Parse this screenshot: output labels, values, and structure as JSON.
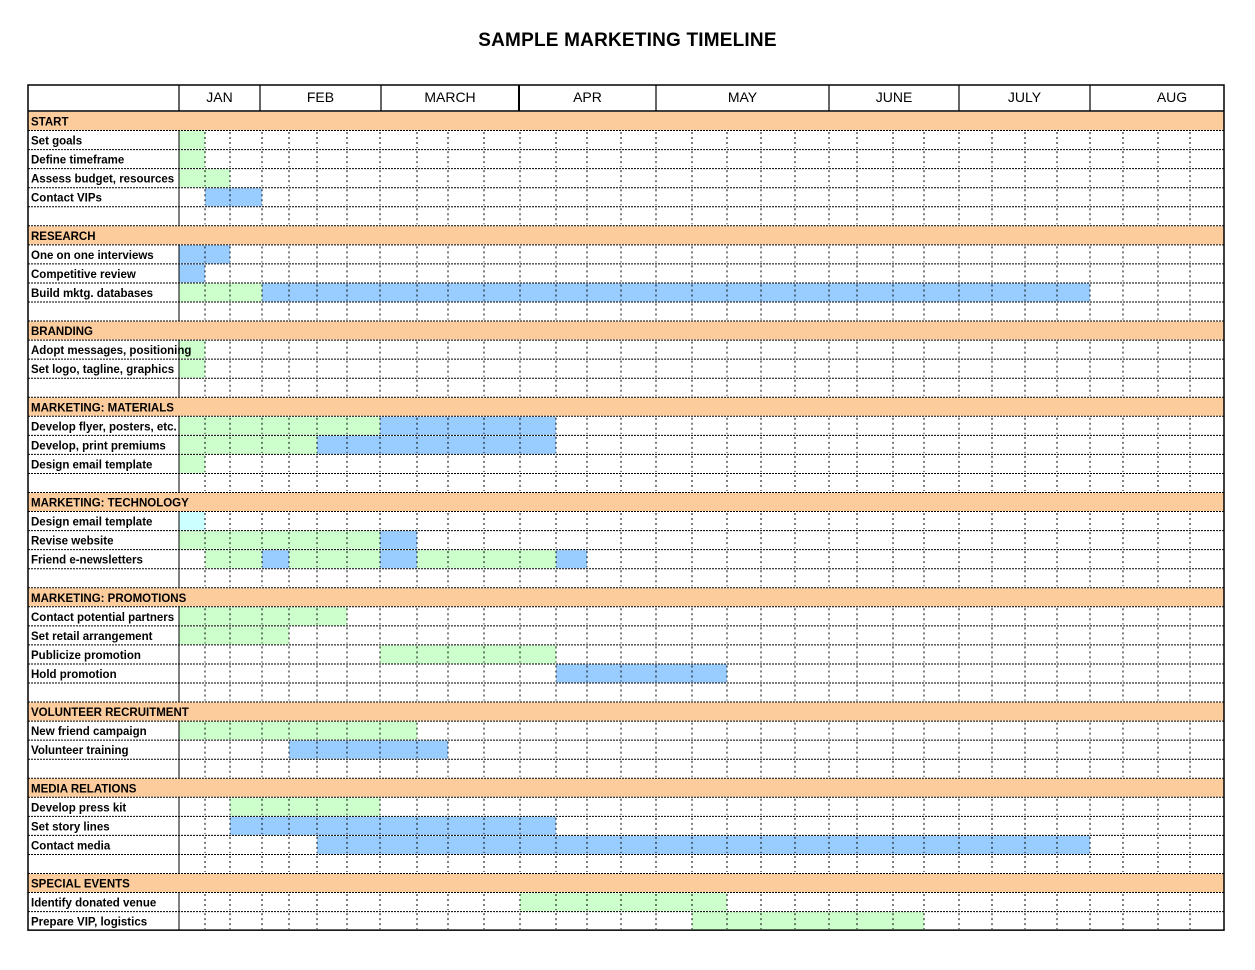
{
  "title": "SAMPLE MARKETING TIMELINE",
  "months": [
    "JAN",
    "FEB",
    "MARCH",
    "APR",
    "MAY",
    "JUNE",
    "JULY",
    "AUG"
  ],
  "colors": {
    "section": "#fccc9c",
    "green": "#ccffcc",
    "blue": "#99ccff",
    "lightcyan": "#ccffff",
    "line": "#000000"
  },
  "sections": [
    {
      "title": "START",
      "tasks": [
        {
          "name": "Set goals",
          "bars": [
            {
              "color": "green",
              "from": 0,
              "to": 1
            }
          ]
        },
        {
          "name": "Define timeframe",
          "bars": [
            {
              "color": "green",
              "from": 0,
              "to": 1
            }
          ]
        },
        {
          "name": "Assess budget, resources",
          "bars": [
            {
              "color": "green",
              "from": 0,
              "to": 2
            }
          ]
        },
        {
          "name": "Contact VIPs",
          "bars": [
            {
              "color": "blue",
              "from": 1,
              "to": 3
            }
          ]
        }
      ]
    },
    {
      "title": "RESEARCH",
      "tasks": [
        {
          "name": "One on one interviews",
          "bars": [
            {
              "color": "blue",
              "from": 0,
              "to": 2
            }
          ]
        },
        {
          "name": "Competitive review",
          "bars": [
            {
              "color": "blue",
              "from": 0,
              "to": 1
            }
          ]
        },
        {
          "name": "Build mktg. databases",
          "bars": [
            {
              "color": "green",
              "from": 0,
              "to": 3
            },
            {
              "color": "blue",
              "from": 3,
              "to": 28
            }
          ]
        }
      ]
    },
    {
      "title": "BRANDING",
      "tasks": [
        {
          "name": "Adopt messages, positioning",
          "bars": [
            {
              "color": "green",
              "from": 0,
              "to": 1
            }
          ]
        },
        {
          "name": "Set logo, tagline, graphics",
          "bars": [
            {
              "color": "green",
              "from": 0,
              "to": 1
            }
          ]
        }
      ]
    },
    {
      "title": "MARKETING: MATERIALS",
      "tasks": [
        {
          "name": "Develop flyer, posters, etc.",
          "bars": [
            {
              "color": "green",
              "from": 0,
              "to": 7
            },
            {
              "color": "blue",
              "from": 7,
              "to": 12
            }
          ]
        },
        {
          "name": "Develop, print premiums",
          "bars": [
            {
              "color": "green",
              "from": 0,
              "to": 5
            },
            {
              "color": "blue",
              "from": 5,
              "to": 12
            }
          ]
        },
        {
          "name": "Design email template",
          "bars": [
            {
              "color": "green",
              "from": 0,
              "to": 1
            }
          ]
        }
      ]
    },
    {
      "title": "MARKETING: TECHNOLOGY",
      "tasks": [
        {
          "name": "Design email template",
          "bars": [
            {
              "color": "lightcyan",
              "from": 0,
              "to": 1
            }
          ]
        },
        {
          "name": "Revise website",
          "bars": [
            {
              "color": "green",
              "from": 0,
              "to": 7
            },
            {
              "color": "blue",
              "from": 7,
              "to": 8
            }
          ]
        },
        {
          "name": "Friend e-newsletters",
          "bars": [
            {
              "color": "green",
              "from": 1,
              "to": 3
            },
            {
              "color": "blue",
              "from": 3,
              "to": 4
            },
            {
              "color": "green",
              "from": 4,
              "to": 7
            },
            {
              "color": "blue",
              "from": 7,
              "to": 8
            },
            {
              "color": "green",
              "from": 8,
              "to": 12
            },
            {
              "color": "blue",
              "from": 12,
              "to": 13
            }
          ]
        }
      ]
    },
    {
      "title": "MARKETING: PROMOTIONS",
      "tasks": [
        {
          "name": "Contact potential partners",
          "bars": [
            {
              "color": "green",
              "from": 0,
              "to": 6
            }
          ]
        },
        {
          "name": "Set retail arrangement",
          "bars": [
            {
              "color": "green",
              "from": 0,
              "to": 4
            }
          ]
        },
        {
          "name": "Publicize promotion",
          "bars": [
            {
              "color": "green",
              "from": 7,
              "to": 12
            }
          ]
        },
        {
          "name": "Hold promotion",
          "bars": [
            {
              "color": "blue",
              "from": 12,
              "to": 17
            }
          ]
        }
      ]
    },
    {
      "title": "VOLUNTEER  RECRUITMENT",
      "tasks": [
        {
          "name": "New friend campaign",
          "bars": [
            {
              "color": "green",
              "from": 0,
              "to": 8
            }
          ]
        },
        {
          "name": "Volunteer training",
          "bars": [
            {
              "color": "blue",
              "from": 4,
              "to": 9
            }
          ]
        }
      ]
    },
    {
      "title": "MEDIA RELATIONS",
      "tasks": [
        {
          "name": "Develop press kit",
          "bars": [
            {
              "color": "green",
              "from": 2,
              "to": 7
            }
          ]
        },
        {
          "name": "Set story lines",
          "bars": [
            {
              "color": "blue",
              "from": 2,
              "to": 12
            }
          ]
        },
        {
          "name": "Contact media",
          "bars": [
            {
              "color": "blue",
              "from": 5,
              "to": 28
            }
          ]
        }
      ]
    },
    {
      "title": "SPECIAL EVENTS",
      "tasks": [
        {
          "name": "Identify donated venue",
          "bars": [
            {
              "color": "green",
              "from": 11,
              "to": 17
            }
          ]
        },
        {
          "name": "Prepare VIP, logistics",
          "bars": [
            {
              "color": "green",
              "from": 16,
              "to": 23
            }
          ]
        }
      ]
    }
  ]
}
